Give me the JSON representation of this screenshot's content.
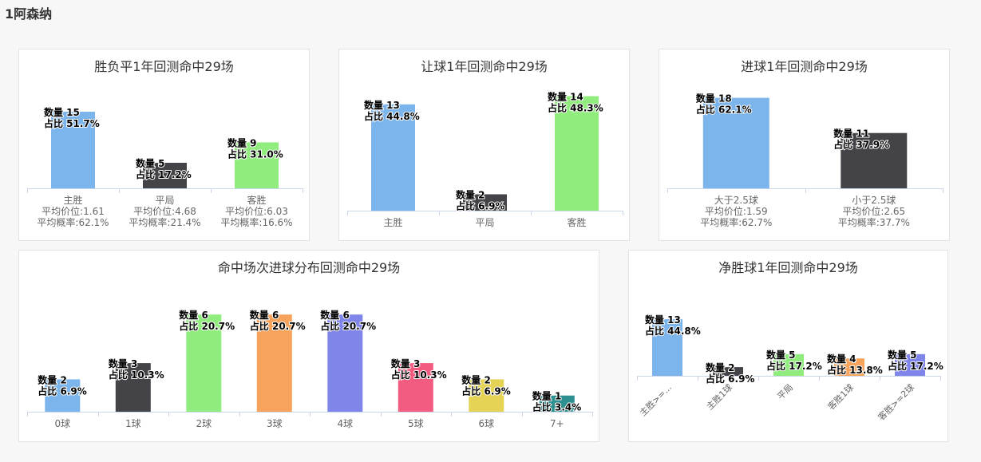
{
  "page": {
    "title": "1阿森纳"
  },
  "colors": [
    "#7cb5ec",
    "#434348",
    "#90ed7d",
    "#f7a35c",
    "#8085e9",
    "#f15c80",
    "#e4d354",
    "#2b908f"
  ],
  "chart_data": [
    {
      "id": "wdl",
      "type": "bar",
      "title": "胜负平1年回测命中29场",
      "categories": [
        "主胜",
        "平局",
        "客胜"
      ],
      "category_details": [
        [
          "平均价位:1.61",
          "平均概率:62.1%"
        ],
        [
          "平均价位:4.68",
          "平均概率:21.4%"
        ],
        [
          "平均价位:6.03",
          "平均概率:16.6%"
        ]
      ],
      "values": [
        15,
        5,
        9
      ],
      "percents": [
        "51.7%",
        "17.2%",
        "31.0%"
      ],
      "count_prefix": "数量",
      "percent_prefix": "占比"
    },
    {
      "id": "handicap",
      "type": "bar",
      "title": "让球1年回测命中29场",
      "categories": [
        "主胜",
        "平局",
        "客胜"
      ],
      "values": [
        13,
        2,
        14
      ],
      "percents": [
        "44.8%",
        "6.9%",
        "48.3%"
      ],
      "count_prefix": "数量",
      "percent_prefix": "占比"
    },
    {
      "id": "goals",
      "type": "bar",
      "title": "进球1年回测命中29场",
      "categories": [
        "大于2.5球",
        "小于2.5球"
      ],
      "category_details": [
        [
          "平均价位:1.59",
          "平均概率:62.7%"
        ],
        [
          "平均价位:2.65",
          "平均概率:37.7%"
        ]
      ],
      "values": [
        18,
        11
      ],
      "percents": [
        "62.1%",
        "37.9%"
      ],
      "count_prefix": "数量",
      "percent_prefix": "占比"
    },
    {
      "id": "goal-dist",
      "type": "bar",
      "title": "命中场次进球分布回测命中29场",
      "categories": [
        "0球",
        "1球",
        "2球",
        "3球",
        "4球",
        "5球",
        "6球",
        "7+"
      ],
      "values": [
        2,
        3,
        6,
        6,
        6,
        3,
        2,
        1
      ],
      "percents": [
        "6.9%",
        "10.3%",
        "20.7%",
        "20.7%",
        "20.7%",
        "10.3%",
        "6.9%",
        "3.4%"
      ],
      "count_prefix": "数量",
      "percent_prefix": "占比"
    },
    {
      "id": "margin",
      "type": "bar",
      "title": "净胜球1年回测命中29场",
      "categories": [
        "主胜>=...",
        "主胜1球",
        "平局",
        "客胜1球",
        "客胜>=2球"
      ],
      "values": [
        13,
        2,
        5,
        4,
        5
      ],
      "percents": [
        "44.8%",
        "6.9%",
        "17.2%",
        "13.8%",
        "17.2%"
      ],
      "count_prefix": "数量",
      "percent_prefix": "占比"
    }
  ]
}
